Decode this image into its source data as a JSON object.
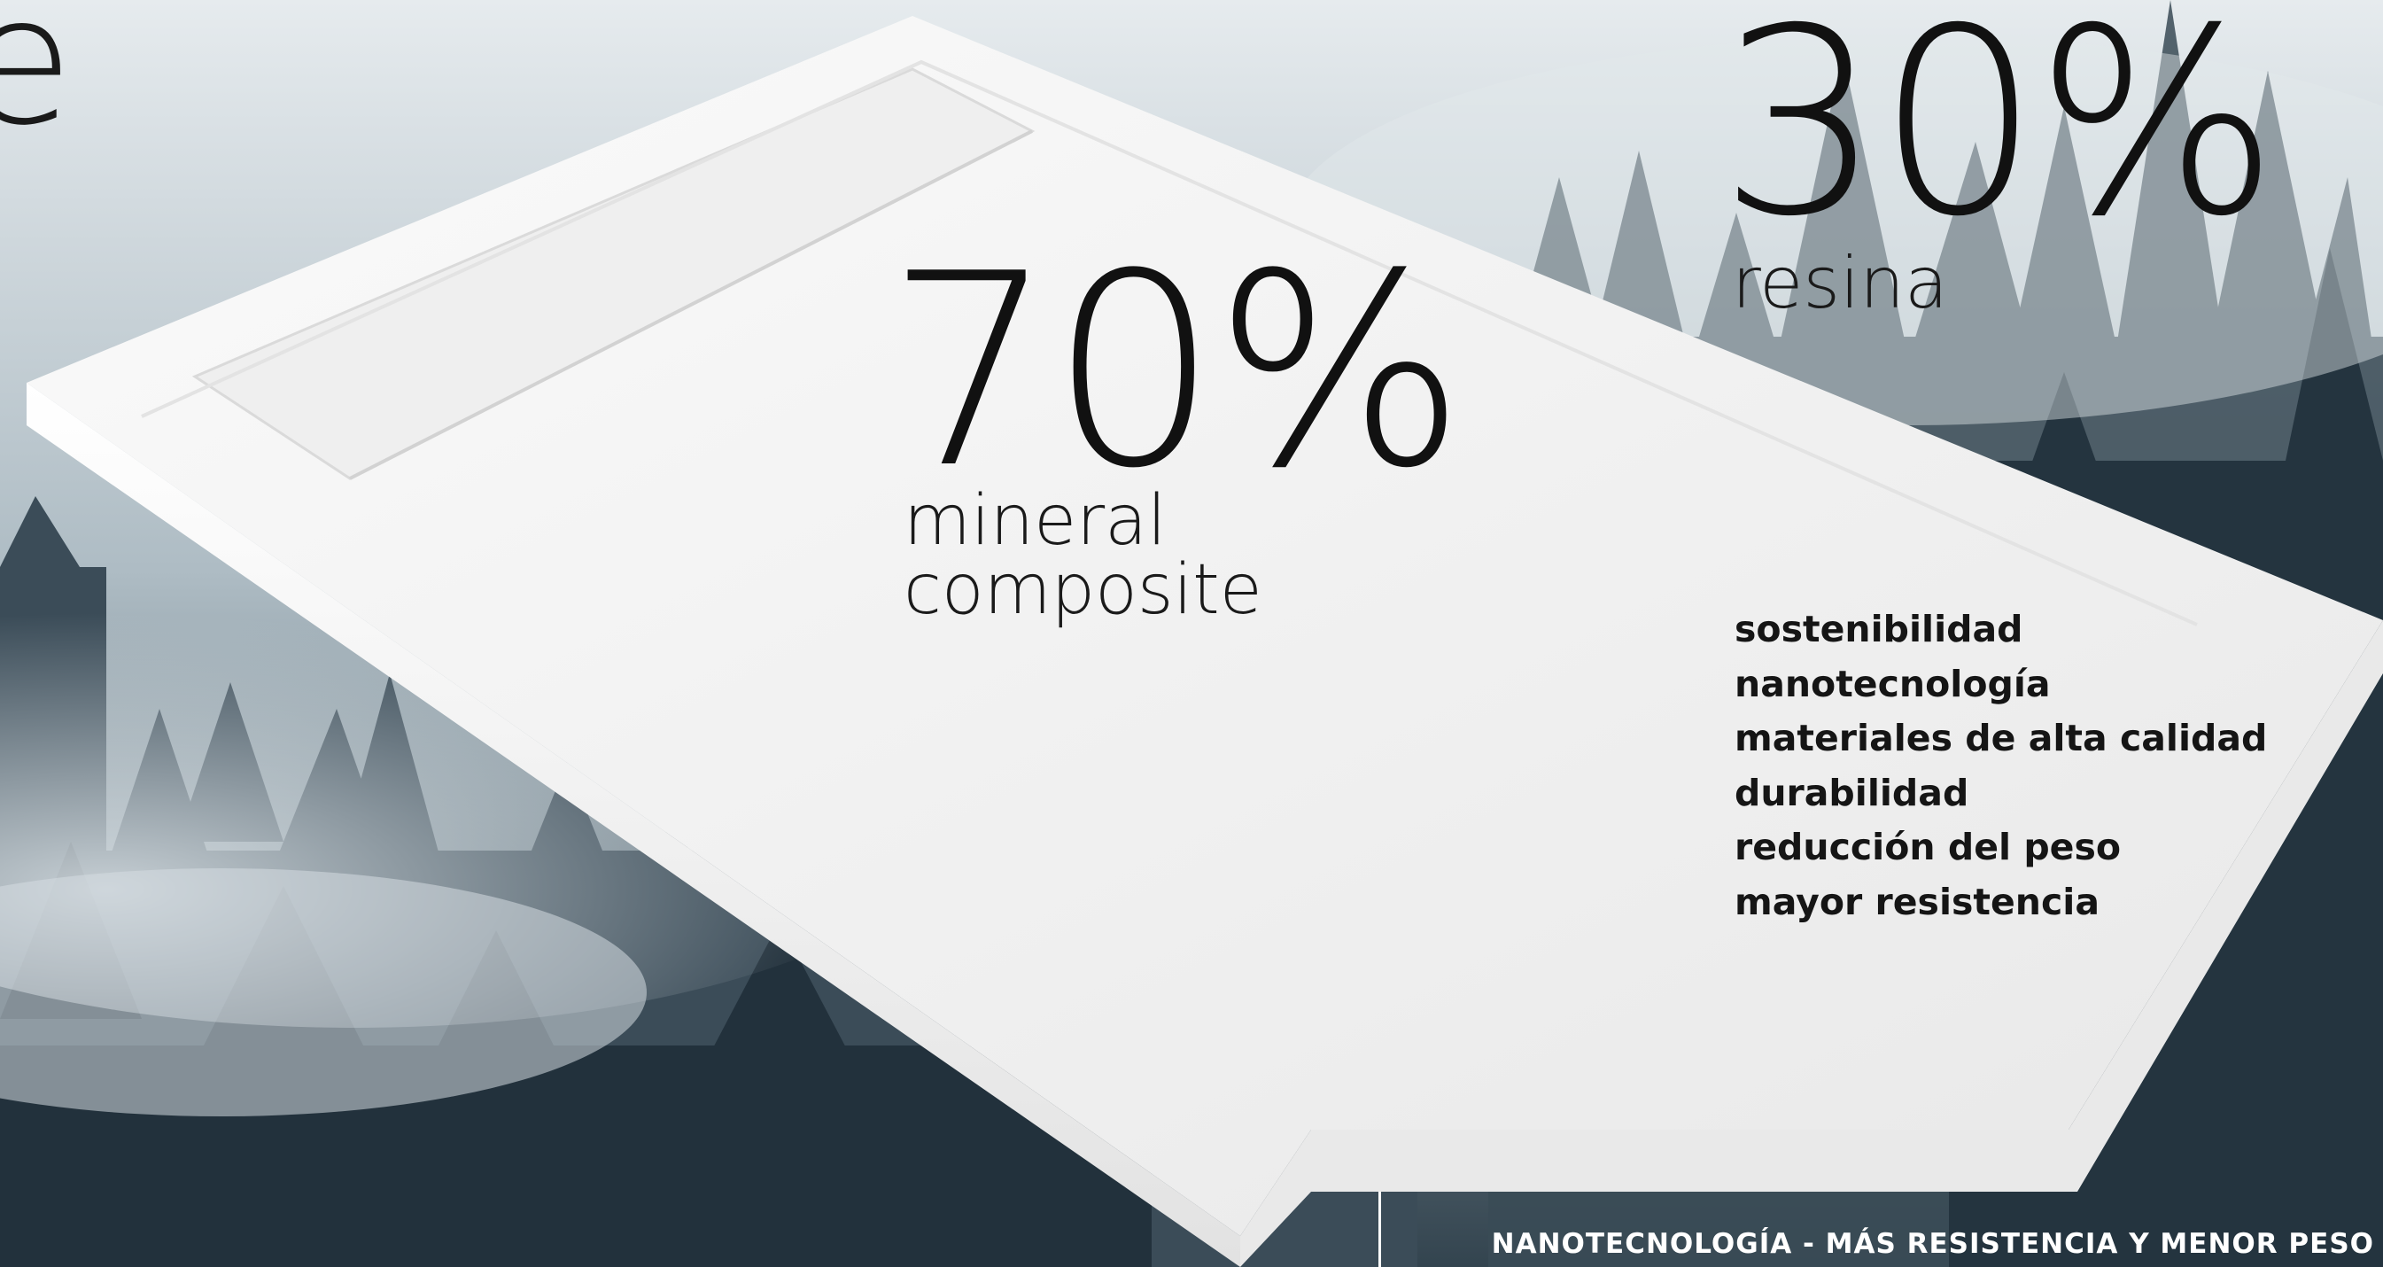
{
  "partial_heading_letter": "e",
  "stat_mineral": {
    "value": "70%",
    "label_line1": "mineral",
    "label_line2": "composite"
  },
  "stat_resin": {
    "value": "30%",
    "label": "resina"
  },
  "features": [
    "sostenibilidad",
    "nanotecnología",
    "materiales de alta calidad",
    "durabilidad",
    "reducción del peso",
    "mayor resistencia"
  ],
  "tagline": "NANOTECNOLOGÍA - MÁS RESISTENCIA Y MENOR PESO",
  "colors": {
    "tray_white": "#f2f2f2",
    "forest_dark": "#2c3c48",
    "fog": "#dde3e6",
    "text_dark": "#111111"
  }
}
